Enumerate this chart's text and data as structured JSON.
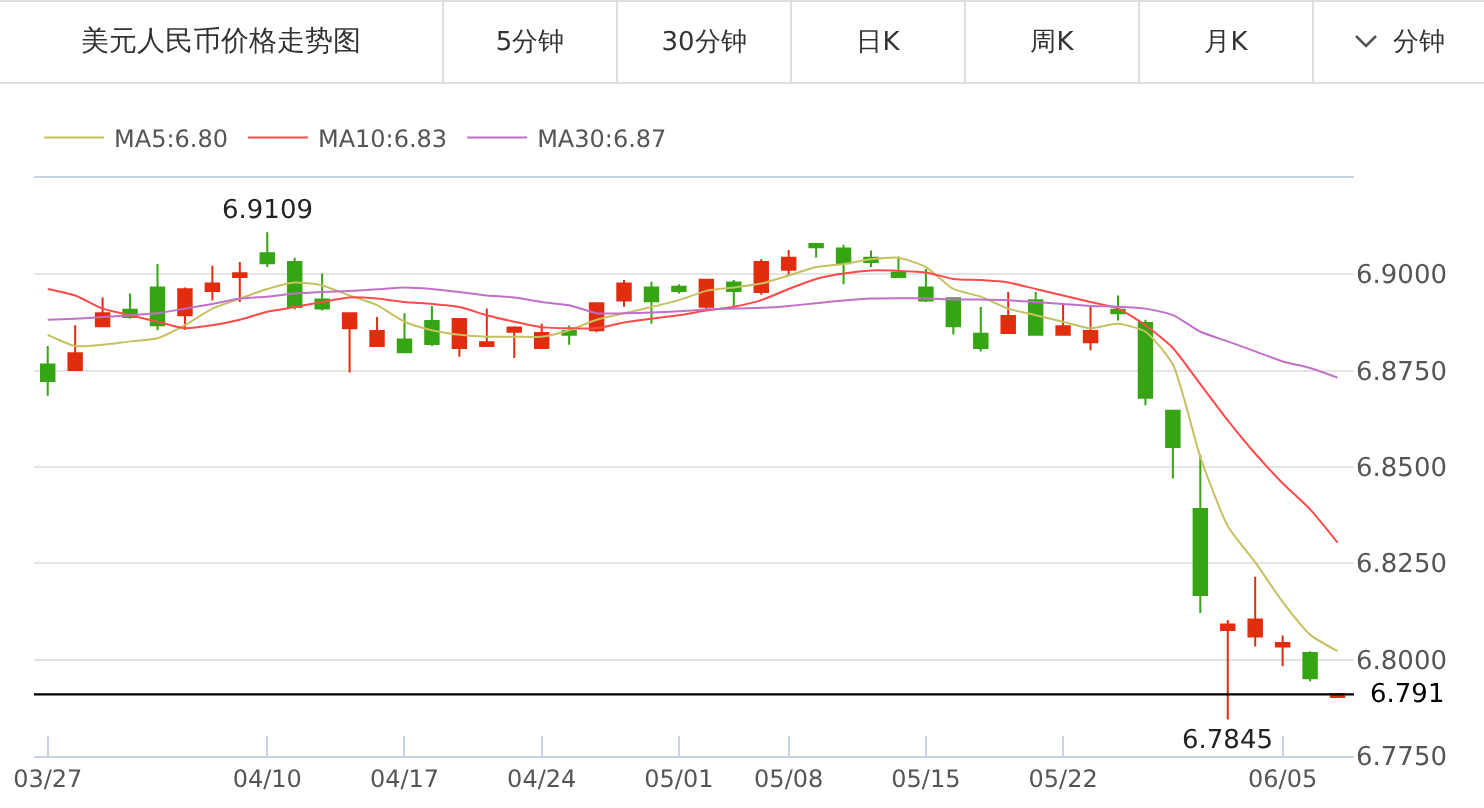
{
  "chart_data": {
    "type": "candlestick",
    "title": "美元人民币价格走势图",
    "annotations": [
      "5分钟",
      "30分钟",
      "日K",
      "周K",
      "月K",
      "分钟",
      {
        "text": "6.9109",
        "y": 6.9109
      },
      {
        "text": "6.7845",
        "y": 6.7845
      }
    ],
    "categories": [
      "03/27",
      null,
      null,
      null,
      null,
      null,
      null,
      null,
      "04/10",
      null,
      null,
      null,
      null,
      "04/17",
      null,
      null,
      null,
      null,
      "04/24",
      null,
      null,
      null,
      null,
      "05/01",
      null,
      null,
      null,
      "05/08",
      null,
      null,
      null,
      null,
      "05/15",
      null,
      null,
      null,
      null,
      "05/22",
      null,
      null,
      null,
      null,
      null,
      null,
      null,
      "06/05",
      null,
      null
    ],
    "ohlc": [
      [
        6.8766,
        6.8814,
        6.8685,
        6.8723
      ],
      [
        6.8752,
        6.8868,
        6.8752,
        6.8795
      ],
      [
        6.8865,
        6.894,
        6.8865,
        6.8899
      ],
      [
        6.8908,
        6.895,
        6.8885,
        6.8889
      ],
      [
        6.8966,
        6.9027,
        6.8855,
        6.8868
      ],
      [
        6.8894,
        6.8966,
        6.8856,
        6.8961
      ],
      [
        6.8957,
        6.9022,
        6.8932,
        6.8976
      ],
      [
        6.8993,
        6.9032,
        6.8928,
        6.9003
      ],
      [
        6.9055,
        6.9109,
        6.9019,
        6.9029
      ],
      [
        6.9032,
        6.9043,
        6.8909,
        6.8915
      ],
      [
        6.8935,
        6.9002,
        6.8906,
        6.8911
      ],
      [
        6.886,
        6.8899,
        6.8745,
        6.8899
      ],
      [
        6.8814,
        6.8889,
        6.8814,
        6.8853
      ],
      [
        6.8831,
        6.8899,
        6.8797,
        6.8798
      ],
      [
        6.8879,
        6.8918,
        6.8814,
        6.8819
      ],
      [
        6.8809,
        6.8885,
        6.8786,
        6.8884
      ],
      [
        6.8814,
        6.8911,
        6.8814,
        6.8824
      ],
      [
        6.8851,
        6.8865,
        6.8783,
        6.8862
      ],
      [
        6.8809,
        6.8872,
        6.8809,
        6.8848
      ],
      [
        6.8853,
        6.8867,
        6.8817,
        6.8843
      ],
      [
        6.8855,
        6.8925,
        6.885,
        6.8925
      ],
      [
        6.8932,
        6.8985,
        6.8916,
        6.8976
      ],
      [
        6.8966,
        6.8981,
        6.8872,
        6.893
      ],
      [
        6.8968,
        6.8974,
        6.895,
        6.8957
      ],
      [
        6.8916,
        6.8986,
        6.8906,
        6.8986
      ],
      [
        6.8979,
        6.8985,
        6.8916,
        6.8957
      ],
      [
        6.8954,
        6.9039,
        6.8947,
        6.9032
      ],
      [
        6.9012,
        6.9063,
        6.8998,
        6.9043
      ],
      [
        6.9079,
        6.9082,
        6.9044,
        6.907
      ],
      [
        6.9067,
        6.9077,
        6.8974,
        6.9029
      ],
      [
        6.9043,
        6.9062,
        6.9019,
        6.9032
      ],
      [
        6.9005,
        6.9046,
        6.8993,
        6.8993
      ],
      [
        6.8966,
        6.9014,
        6.8928,
        6.8932
      ],
      [
        6.8938,
        6.8938,
        6.8844,
        6.8865
      ],
      [
        6.8846,
        6.8915,
        6.88,
        6.8809
      ],
      [
        6.8848,
        6.8954,
        6.8848,
        6.8892
      ],
      [
        6.8933,
        6.8954,
        6.8843,
        6.8843
      ],
      [
        6.8843,
        6.8921,
        6.8843,
        6.8865
      ],
      [
        6.8824,
        6.8916,
        6.8803,
        6.8853
      ],
      [
        6.8908,
        6.8945,
        6.888,
        6.8899
      ],
      [
        6.8874,
        6.8882,
        6.866,
        6.868
      ],
      [
        6.8646,
        6.8646,
        6.847,
        6.8552
      ],
      [
        6.8391,
        6.8532,
        6.8121,
        6.8168
      ],
      [
        6.8077,
        6.8103,
        6.7845,
        6.8091
      ],
      [
        6.806,
        6.8215,
        6.8034,
        6.8104
      ],
      [
        6.8034,
        6.8063,
        6.7983,
        6.8043
      ],
      [
        6.8017,
        6.8022,
        6.7944,
        6.7952
      ],
      [
        6.7903,
        6.7911,
        6.7903,
        6.7911
      ]
    ],
    "colors": [
      "#36a514",
      "#e12d0e",
      "#e12d0e",
      "#36a514",
      "#36a514",
      "#e12d0e",
      "#e12d0e",
      "#e12d0e",
      "#36a514",
      "#36a514",
      "#36a514",
      "#e12d0e",
      "#e12d0e",
      "#36a514",
      "#36a514",
      "#e12d0e",
      "#e12d0e",
      "#e12d0e",
      "#e12d0e",
      "#36a514",
      "#e12d0e",
      "#e12d0e",
      "#36a514",
      "#36a514",
      "#e12d0e",
      "#36a514",
      "#e12d0e",
      "#e12d0e",
      "#36a514",
      "#36a514",
      "#36a514",
      "#36a514",
      "#36a514",
      "#36a514",
      "#36a514",
      "#e12d0e",
      "#36a514",
      "#e12d0e",
      "#e12d0e",
      "#36a514",
      "#36a514",
      "#36a514",
      "#36a514",
      "#e12d0e",
      "#e12d0e",
      "#e12d0e",
      "#36a514",
      "#e12d0e"
    ],
    "series": [
      {
        "type": "line",
        "name": "MA5:6.80",
        "color": "#c8c060",
        "values": [
          6.8843,
          6.8814,
          6.8817,
          6.8826,
          6.8834,
          6.8868,
          6.8911,
          6.8937,
          6.8962,
          6.8979,
          6.8971,
          6.8945,
          6.892,
          6.8877,
          6.8855,
          6.8843,
          6.8838,
          6.8838,
          6.8838,
          6.8855,
          6.8882,
          6.8899,
          6.8915,
          6.8933,
          6.8957,
          6.8966,
          6.8976,
          6.8997,
          6.9019,
          6.9027,
          6.9039,
          6.9043,
          6.9019,
          6.8962,
          6.8942,
          6.8911,
          6.8894,
          6.8877,
          6.886,
          6.8872,
          6.8851,
          6.8766,
          6.8526,
          6.8347,
          6.8253,
          6.815,
          6.8065,
          6.8022
        ]
      },
      {
        "type": "line",
        "name": "MA10:6.83",
        "color": "#ff4a4a",
        "values": [
          6.8962,
          6.8945,
          6.8911,
          6.8894,
          6.8877,
          6.886,
          6.8868,
          6.8882,
          6.8903,
          6.8915,
          6.8928,
          6.894,
          6.8937,
          6.8928,
          6.8923,
          6.8915,
          6.8894,
          6.8877,
          6.8863,
          6.886,
          6.886,
          6.8875,
          6.8885,
          6.8894,
          6.8906,
          6.8916,
          6.8933,
          6.8962,
          6.8988,
          6.9002,
          6.901,
          6.9009,
          6.9005,
          6.8988,
          6.8985,
          6.8979,
          6.8962,
          6.8945,
          6.8928,
          6.8911,
          6.8868,
          6.8809,
          6.8715,
          6.8621,
          6.8535,
          6.8458,
          6.839,
          6.8304
        ]
      },
      {
        "type": "line",
        "name": "MA30:6.87",
        "color": "#c070c8",
        "values": [
          6.8882,
          6.8885,
          6.8889,
          6.8894,
          6.8899,
          6.8911,
          6.8923,
          6.8937,
          6.8942,
          6.895,
          6.8954,
          6.8957,
          6.8961,
          6.8966,
          6.8962,
          6.8954,
          6.8945,
          6.894,
          6.8928,
          6.892,
          6.8899,
          6.8899,
          6.8901,
          6.8904,
          6.8909,
          6.8911,
          6.8913,
          6.8918,
          6.8925,
          6.8932,
          6.8937,
          6.8938,
          6.8937,
          6.8935,
          6.8935,
          6.8933,
          6.8928,
          6.8923,
          6.8918,
          6.8916,
          6.8911,
          6.8894,
          6.8851,
          6.8826,
          6.88,
          6.8774,
          6.8757,
          6.8732
        ]
      }
    ],
    "ylim": [
      6.775,
      6.925
    ],
    "yticks": [
      {
        "value": 6.775,
        "label": "6.7750"
      },
      {
        "value": 6.8,
        "label": "6.8000"
      },
      {
        "value": 6.825,
        "label": "6.8250"
      },
      {
        "value": 6.85,
        "label": "6.8500"
      },
      {
        "value": 6.875,
        "label": "6.8750"
      },
      {
        "value": 6.9,
        "label": "6.9000"
      }
    ],
    "ref_lines": [
      {
        "axis": "y",
        "value": 6.791,
        "label": "6.791",
        "color": "#000000"
      }
    ],
    "grid": "y",
    "legend": "top left"
  }
}
